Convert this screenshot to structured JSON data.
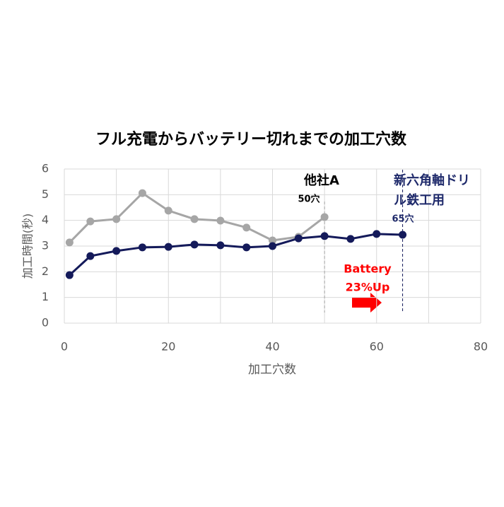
{
  "chart_data": {
    "type": "line",
    "title": "フル充電からバッテリー切れまでの加工穴数",
    "x_label": "加工穴数",
    "y_label": "加工時間(秒)",
    "xlim": [
      0,
      80
    ],
    "xticks": [
      0,
      20,
      40,
      60,
      80
    ],
    "xgrid": [
      0,
      10,
      20,
      30,
      40,
      50,
      60,
      70,
      80
    ],
    "ylim": [
      0,
      6
    ],
    "yticks": [
      0,
      1,
      2,
      3,
      4,
      5,
      6
    ],
    "grid": true,
    "series": [
      {
        "color": "#a6a6a6",
        "x": [
          1,
          5,
          10,
          15,
          20,
          25,
          30,
          35,
          40,
          45,
          50
        ],
        "values": [
          3.14,
          3.96,
          4.05,
          5.06,
          4.38,
          4.05,
          3.99,
          3.72,
          3.22,
          3.36,
          4.13
        ]
      },
      {
        "color": "#141a5a",
        "x": [
          1,
          5,
          10,
          15,
          20,
          25,
          30,
          35,
          40,
          45,
          50,
          55,
          60,
          65
        ],
        "values": [
          1.87,
          2.61,
          2.81,
          2.95,
          2.97,
          3.06,
          3.03,
          2.95,
          3.0,
          3.3,
          3.39,
          3.28,
          3.47,
          3.44
        ]
      }
    ],
    "markers": [
      50,
      65
    ],
    "annotations": [
      {
        "lines": [
          "他社A"
        ],
        "color": "#000000"
      },
      {
        "lines": [
          "50穴"
        ],
        "color": "#000000"
      },
      {
        "lines": [
          "新六角軸ドリ",
          "ル鉄工用"
        ],
        "color": "#1f2a6b"
      },
      {
        "lines": [
          "65穴"
        ],
        "color": "#1f2a6b"
      },
      {
        "lines": [
          "Battery",
          "23%Up"
        ],
        "color": "#ff0000"
      }
    ]
  }
}
